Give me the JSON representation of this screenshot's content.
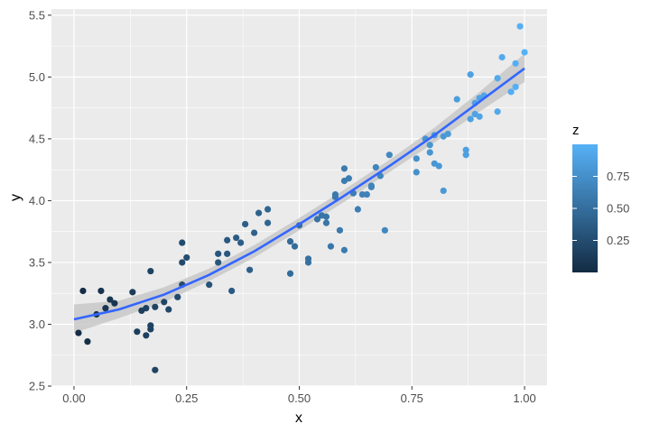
{
  "chart_data": {
    "type": "scatter",
    "xlabel": "x",
    "ylabel": "y",
    "xlim": [
      -0.05,
      1.05
    ],
    "ylim": [
      2.5,
      5.55
    ],
    "x_ticks": [
      0.0,
      0.25,
      0.5,
      0.75,
      1.0
    ],
    "x_tick_labels": [
      "0.00",
      "0.25",
      "0.50",
      "0.75",
      "1.00"
    ],
    "y_ticks": [
      2.5,
      3.0,
      3.5,
      4.0,
      4.5,
      5.0,
      5.5
    ],
    "y_tick_labels": [
      "2.5",
      "3.0",
      "3.5",
      "4.0",
      "4.5",
      "5.0",
      "5.5"
    ],
    "grid": true,
    "panel_background": "#ebebeb",
    "grid_color": "#ffffff",
    "legend": {
      "title": "z",
      "position": "right",
      "ticks": [
        0.25,
        0.5,
        0.75
      ],
      "tick_labels": [
        "0.25",
        "0.50",
        "0.75"
      ],
      "range": [
        0.0,
        1.0
      ],
      "low_color": "#132b43",
      "high_color": "#56b1f7"
    },
    "points": [
      {
        "x": 0.01,
        "y": 2.93
      },
      {
        "x": 0.02,
        "y": 3.27
      },
      {
        "x": 0.03,
        "y": 2.86
      },
      {
        "x": 0.05,
        "y": 3.08
      },
      {
        "x": 0.06,
        "y": 3.27
      },
      {
        "x": 0.07,
        "y": 3.13
      },
      {
        "x": 0.08,
        "y": 3.2
      },
      {
        "x": 0.09,
        "y": 3.17
      },
      {
        "x": 0.13,
        "y": 3.26
      },
      {
        "x": 0.14,
        "y": 2.94
      },
      {
        "x": 0.15,
        "y": 3.11
      },
      {
        "x": 0.16,
        "y": 3.13
      },
      {
        "x": 0.16,
        "y": 2.91
      },
      {
        "x": 0.17,
        "y": 2.99
      },
      {
        "x": 0.17,
        "y": 2.96
      },
      {
        "x": 0.17,
        "y": 3.43
      },
      {
        "x": 0.18,
        "y": 3.14
      },
      {
        "x": 0.18,
        "y": 2.63
      },
      {
        "x": 0.2,
        "y": 3.18
      },
      {
        "x": 0.21,
        "y": 3.12
      },
      {
        "x": 0.23,
        "y": 3.22
      },
      {
        "x": 0.24,
        "y": 3.32
      },
      {
        "x": 0.24,
        "y": 3.5
      },
      {
        "x": 0.24,
        "y": 3.66
      },
      {
        "x": 0.25,
        "y": 3.54
      },
      {
        "x": 0.3,
        "y": 3.32
      },
      {
        "x": 0.32,
        "y": 3.57
      },
      {
        "x": 0.32,
        "y": 3.5
      },
      {
        "x": 0.34,
        "y": 3.57
      },
      {
        "x": 0.34,
        "y": 3.68
      },
      {
        "x": 0.35,
        "y": 3.27
      },
      {
        "x": 0.36,
        "y": 3.7
      },
      {
        "x": 0.37,
        "y": 3.66
      },
      {
        "x": 0.38,
        "y": 3.81
      },
      {
        "x": 0.39,
        "y": 3.44
      },
      {
        "x": 0.4,
        "y": 3.74
      },
      {
        "x": 0.41,
        "y": 3.9
      },
      {
        "x": 0.43,
        "y": 3.93
      },
      {
        "x": 0.43,
        "y": 3.82
      },
      {
        "x": 0.48,
        "y": 3.41
      },
      {
        "x": 0.48,
        "y": 3.67
      },
      {
        "x": 0.49,
        "y": 3.63
      },
      {
        "x": 0.5,
        "y": 3.8
      },
      {
        "x": 0.52,
        "y": 3.5
      },
      {
        "x": 0.52,
        "y": 3.53
      },
      {
        "x": 0.54,
        "y": 3.85
      },
      {
        "x": 0.55,
        "y": 3.88
      },
      {
        "x": 0.56,
        "y": 3.82
      },
      {
        "x": 0.56,
        "y": 3.87
      },
      {
        "x": 0.57,
        "y": 3.63
      },
      {
        "x": 0.58,
        "y": 4.03
      },
      {
        "x": 0.58,
        "y": 4.05
      },
      {
        "x": 0.59,
        "y": 3.76
      },
      {
        "x": 0.6,
        "y": 3.6
      },
      {
        "x": 0.6,
        "y": 4.16
      },
      {
        "x": 0.6,
        "y": 4.26
      },
      {
        "x": 0.61,
        "y": 4.18
      },
      {
        "x": 0.62,
        "y": 4.06
      },
      {
        "x": 0.63,
        "y": 3.93
      },
      {
        "x": 0.64,
        "y": 4.05
      },
      {
        "x": 0.65,
        "y": 4.05
      },
      {
        "x": 0.66,
        "y": 4.12
      },
      {
        "x": 0.66,
        "y": 4.11
      },
      {
        "x": 0.67,
        "y": 4.27
      },
      {
        "x": 0.68,
        "y": 4.2
      },
      {
        "x": 0.69,
        "y": 3.76
      },
      {
        "x": 0.7,
        "y": 4.37
      },
      {
        "x": 0.76,
        "y": 4.23
      },
      {
        "x": 0.76,
        "y": 4.34
      },
      {
        "x": 0.78,
        "y": 4.5
      },
      {
        "x": 0.79,
        "y": 4.39
      },
      {
        "x": 0.79,
        "y": 4.45
      },
      {
        "x": 0.8,
        "y": 4.3
      },
      {
        "x": 0.8,
        "y": 4.53
      },
      {
        "x": 0.81,
        "y": 4.28
      },
      {
        "x": 0.82,
        "y": 4.08
      },
      {
        "x": 0.82,
        "y": 4.52
      },
      {
        "x": 0.83,
        "y": 4.54
      },
      {
        "x": 0.85,
        "y": 4.82
      },
      {
        "x": 0.87,
        "y": 4.37
      },
      {
        "x": 0.87,
        "y": 4.41
      },
      {
        "x": 0.88,
        "y": 5.02
      },
      {
        "x": 0.88,
        "y": 4.66
      },
      {
        "x": 0.89,
        "y": 4.7
      },
      {
        "x": 0.89,
        "y": 4.79
      },
      {
        "x": 0.9,
        "y": 4.83
      },
      {
        "x": 0.9,
        "y": 4.68
      },
      {
        "x": 0.91,
        "y": 4.85
      },
      {
        "x": 0.94,
        "y": 4.99
      },
      {
        "x": 0.94,
        "y": 4.72
      },
      {
        "x": 0.95,
        "y": 5.16
      },
      {
        "x": 0.97,
        "y": 4.88
      },
      {
        "x": 0.98,
        "y": 4.92
      },
      {
        "x": 0.98,
        "y": 5.11
      },
      {
        "x": 0.99,
        "y": 5.41
      },
      {
        "x": 1.0,
        "y": 5.2
      }
    ],
    "smooth": {
      "method": "quadratic",
      "line_color": "#3366ff",
      "band_color": "#c8c8c8",
      "points": [
        {
          "x": 0.0,
          "y": 3.04,
          "ymin": 2.93,
          "ymax": 3.16
        },
        {
          "x": 0.1,
          "y": 3.12,
          "ymin": 3.05,
          "ymax": 3.19
        },
        {
          "x": 0.2,
          "y": 3.24,
          "ymin": 3.18,
          "ymax": 3.3
        },
        {
          "x": 0.3,
          "y": 3.4,
          "ymin": 3.35,
          "ymax": 3.45
        },
        {
          "x": 0.4,
          "y": 3.59,
          "ymin": 3.54,
          "ymax": 3.64
        },
        {
          "x": 0.5,
          "y": 3.81,
          "ymin": 3.76,
          "ymax": 3.86
        },
        {
          "x": 0.6,
          "y": 4.04,
          "ymin": 3.99,
          "ymax": 4.09
        },
        {
          "x": 0.7,
          "y": 4.28,
          "ymin": 4.23,
          "ymax": 4.33
        },
        {
          "x": 0.8,
          "y": 4.53,
          "ymin": 4.47,
          "ymax": 4.59
        },
        {
          "x": 0.9,
          "y": 4.8,
          "ymin": 4.72,
          "ymax": 4.88
        },
        {
          "x": 1.0,
          "y": 5.07,
          "ymin": 4.96,
          "ymax": 5.19
        }
      ]
    }
  }
}
